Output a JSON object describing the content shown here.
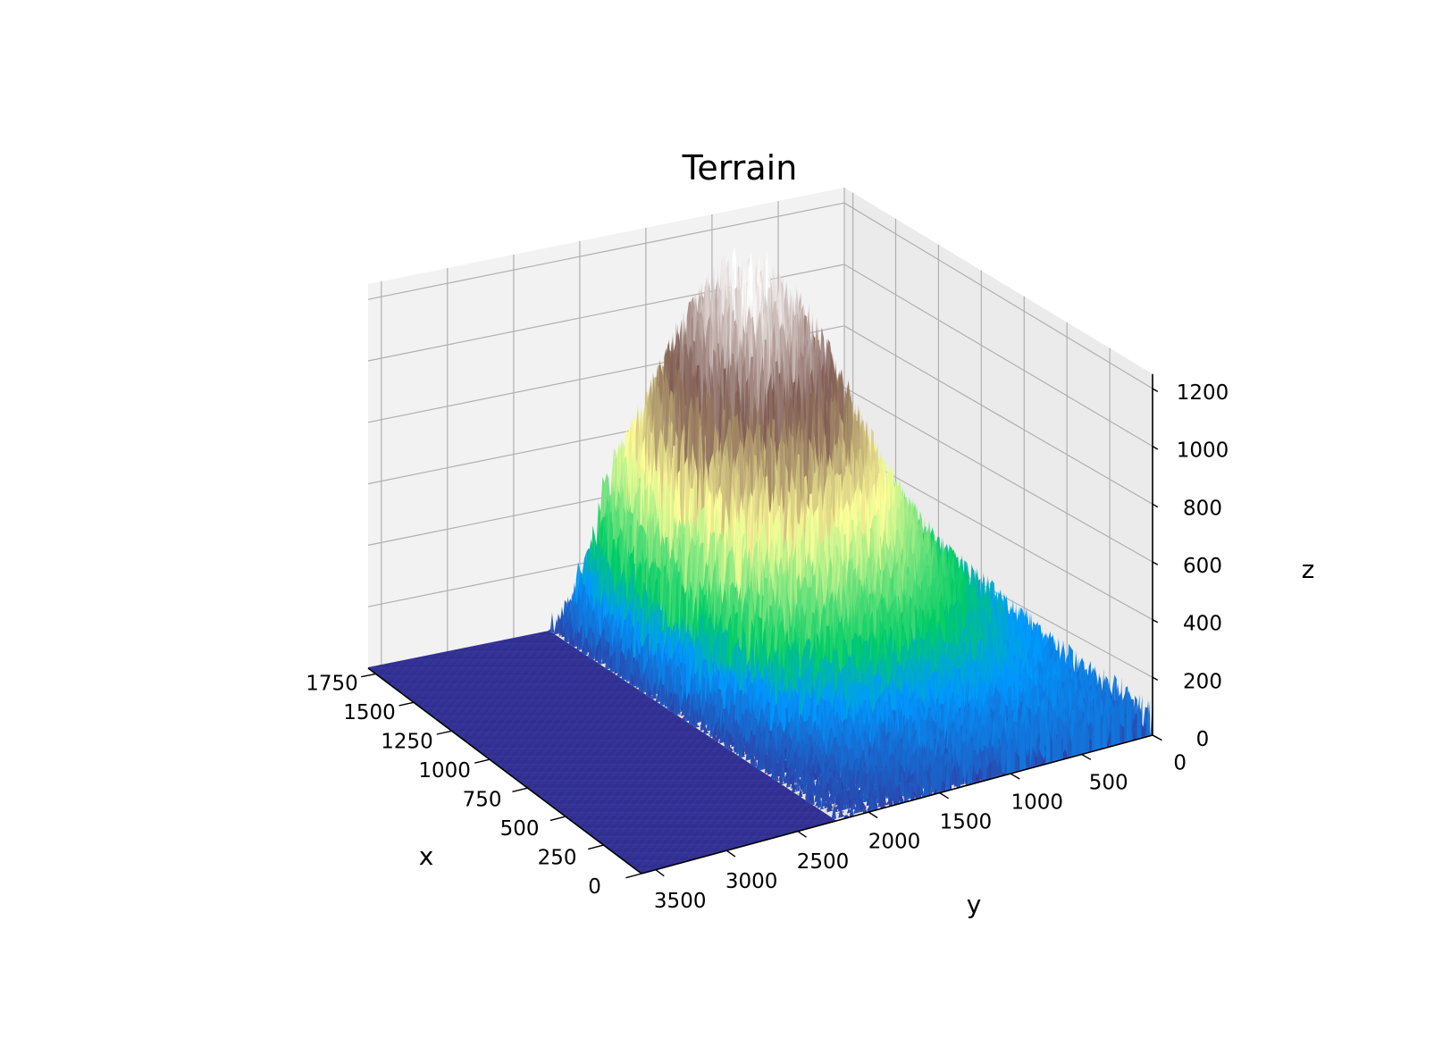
{
  "chart_data": {
    "type": "surface",
    "title": "Terrain",
    "xlabel": "x",
    "ylabel": "y",
    "zlabel": "z",
    "colormap": "terrain",
    "x_ticks": [
      0,
      250,
      500,
      750,
      1000,
      1250,
      1500,
      1750
    ],
    "y_ticks": [
      0,
      500,
      1000,
      1500,
      2000,
      2500,
      3000,
      3500
    ],
    "z_ticks": [
      0,
      200,
      400,
      600,
      800,
      1000,
      1200
    ],
    "xlim": [
      0,
      1800
    ],
    "ylim": [
      0,
      3600
    ],
    "zlim": [
      0,
      1250
    ],
    "grid": true,
    "pane_color": "#f2f2f2",
    "grid_color": "#b0b0b0",
    "surface_height_profile": [
      {
        "x": 0,
        "y": 0,
        "z": 80
      },
      {
        "x": 900,
        "y": 1000,
        "z": 950
      },
      {
        "x": 1400,
        "y": 1800,
        "z": 1150
      },
      {
        "x": 1800,
        "y": 3600,
        "z": 0
      },
      {
        "x": 0,
        "y": 3600,
        "z": 0
      }
    ]
  }
}
